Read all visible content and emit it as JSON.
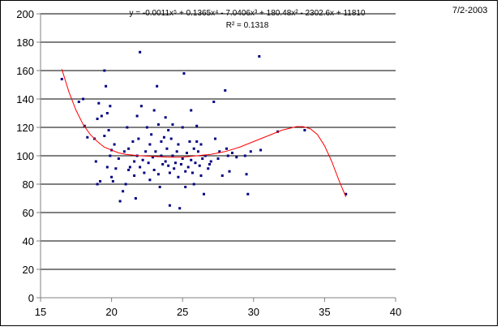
{
  "page": {
    "date": "7/2-2003"
  },
  "chart_data": {
    "type": "scatter",
    "title": "",
    "xlabel": "",
    "ylabel": "",
    "xlim": [
      15,
      40
    ],
    "ylim": [
      0,
      200
    ],
    "x_ticks": [
      15,
      20,
      25,
      30,
      35,
      40
    ],
    "y_ticks": [
      0,
      20,
      40,
      60,
      80,
      100,
      120,
      140,
      160,
      180,
      200
    ],
    "grid": "horizontal",
    "legend": "none",
    "colors": {
      "points": "#000080",
      "trendline": "#ff0000",
      "grid": "#000000",
      "axis": "#808080"
    },
    "trendline": {
      "type": "polynomial",
      "equation": "y = -0.0011x⁵ + 0.1365x⁴ - 7.0406x³ + 180.48x² - 2302.6x + 11810",
      "r_squared": "R² = 0.1318",
      "points": [
        [
          16.5,
          161
        ],
        [
          17,
          145
        ],
        [
          17.5,
          132
        ],
        [
          18,
          122
        ],
        [
          18.5,
          115
        ],
        [
          19,
          110
        ],
        [
          19.5,
          106
        ],
        [
          20,
          104
        ],
        [
          20.5,
          102
        ],
        [
          21,
          101
        ],
        [
          22,
          100
        ],
        [
          23,
          99.5
        ],
        [
          24,
          99
        ],
        [
          25,
          99
        ],
        [
          26,
          100
        ],
        [
          27,
          101
        ],
        [
          28,
          103
        ],
        [
          29,
          106
        ],
        [
          30,
          110
        ],
        [
          31,
          114
        ],
        [
          32,
          118
        ],
        [
          33,
          120.5
        ],
        [
          33.5,
          120.5
        ],
        [
          34,
          119
        ],
        [
          34.5,
          115
        ],
        [
          35,
          107
        ],
        [
          35.5,
          96
        ],
        [
          36,
          83
        ],
        [
          36.5,
          71
        ]
      ]
    },
    "series": [
      {
        "points": [
          [
            16.5,
            154
          ],
          [
            17.7,
            138
          ],
          [
            18,
            140
          ],
          [
            18.1,
            121
          ],
          [
            18.3,
            113
          ],
          [
            18.8,
            112
          ],
          [
            18.9,
            96
          ],
          [
            19,
            80
          ],
          [
            19,
            126
          ],
          [
            19.1,
            137
          ],
          [
            19.2,
            82
          ],
          [
            19.3,
            128
          ],
          [
            19.5,
            160
          ],
          [
            19.5,
            114
          ],
          [
            19.6,
            149
          ],
          [
            19.7,
            130
          ],
          [
            19.7,
            92
          ],
          [
            19.8,
            118
          ],
          [
            19.9,
            135
          ],
          [
            19.9,
            100
          ],
          [
            20,
            85
          ],
          [
            20,
            104
          ],
          [
            20.1,
            82
          ],
          [
            20.2,
            108
          ],
          [
            20.3,
            91
          ],
          [
            20.5,
            98
          ],
          [
            20.6,
            68
          ],
          [
            20.8,
            75
          ],
          [
            20.9,
            103
          ],
          [
            21,
            80
          ],
          [
            21.1,
            120
          ],
          [
            21.2,
            105
          ],
          [
            21.2,
            90
          ],
          [
            21.3,
            92
          ],
          [
            21.5,
            110
          ],
          [
            21.6,
            96
          ],
          [
            21.6,
            86
          ],
          [
            21.7,
            70
          ],
          [
            21.8,
            100
          ],
          [
            21.8,
            128
          ],
          [
            21.9,
            112
          ],
          [
            22,
            173
          ],
          [
            22,
            92
          ],
          [
            22.1,
            135
          ],
          [
            22.2,
            97
          ],
          [
            22.3,
            88
          ],
          [
            22.4,
            103
          ],
          [
            22.5,
            120
          ],
          [
            22.6,
            95
          ],
          [
            22.7,
            83
          ],
          [
            22.7,
            108
          ],
          [
            22.8,
            115
          ],
          [
            22.9,
            99
          ],
          [
            23,
            132
          ],
          [
            23,
            90
          ],
          [
            23.1,
            103
          ],
          [
            23.2,
            149
          ],
          [
            23.3,
            122
          ],
          [
            23.3,
            87
          ],
          [
            23.4,
            78
          ],
          [
            23.5,
            100
          ],
          [
            23.5,
            110
          ],
          [
            23.6,
            94
          ],
          [
            23.7,
            113
          ],
          [
            23.8,
            127
          ],
          [
            23.8,
            96
          ],
          [
            23.9,
            105
          ],
          [
            24,
            118
          ],
          [
            24,
            93
          ],
          [
            24.1,
            88
          ],
          [
            24.1,
            65
          ],
          [
            24.2,
            112
          ],
          [
            24.3,
            122
          ],
          [
            24.3,
            100
          ],
          [
            24.4,
            91
          ],
          [
            24.5,
            95
          ],
          [
            24.6,
            103
          ],
          [
            24.7,
            85
          ],
          [
            24.7,
            108
          ],
          [
            24.8,
            63
          ],
          [
            24.9,
            94
          ],
          [
            25,
            120
          ],
          [
            25,
            98
          ],
          [
            25.1,
            158
          ],
          [
            25.2,
            89
          ],
          [
            25.2,
            78
          ],
          [
            25.3,
            102
          ],
          [
            25.4,
            92
          ],
          [
            25.5,
            110
          ],
          [
            25.6,
            97
          ],
          [
            25.6,
            132
          ],
          [
            25.7,
            88
          ],
          [
            25.8,
            105
          ],
          [
            25.8,
            80
          ],
          [
            25.9,
            95
          ],
          [
            26,
            121
          ],
          [
            26,
            110
          ],
          [
            26.1,
            103
          ],
          [
            26.2,
            93
          ],
          [
            26.3,
            108
          ],
          [
            26.3,
            86
          ],
          [
            26.4,
            98
          ],
          [
            26.5,
            73
          ],
          [
            26.6,
            100
          ],
          [
            26.8,
            91
          ],
          [
            26.9,
            94
          ],
          [
            27,
            96
          ],
          [
            27.2,
            138
          ],
          [
            27.3,
            112
          ],
          [
            27.5,
            98
          ],
          [
            27.6,
            103
          ],
          [
            27.8,
            86
          ],
          [
            28,
            146
          ],
          [
            28.1,
            105
          ],
          [
            28.2,
            100
          ],
          [
            28.3,
            89
          ],
          [
            28.5,
            102
          ],
          [
            28.8,
            99
          ],
          [
            29.4,
            100
          ],
          [
            29.5,
            87
          ],
          [
            29.6,
            73
          ],
          [
            29.8,
            103
          ],
          [
            30.4,
            170
          ],
          [
            30.5,
            104
          ],
          [
            31.7,
            117
          ],
          [
            33.6,
            118
          ],
          [
            36.5,
            73
          ]
        ]
      }
    ]
  }
}
